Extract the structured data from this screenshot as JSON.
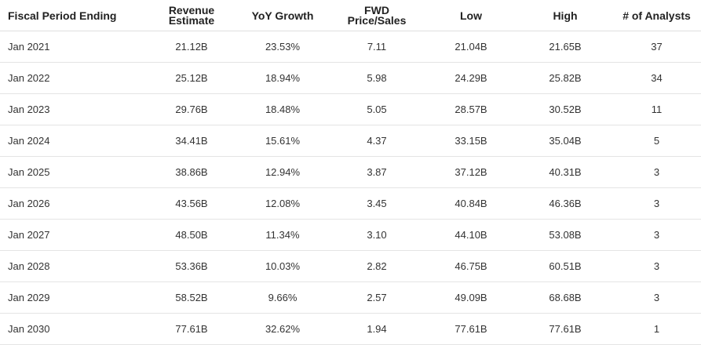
{
  "columns": [
    {
      "line1": "Fiscal Period Ending",
      "line2": ""
    },
    {
      "line1": "Revenue",
      "line2": "Estimate"
    },
    {
      "line1": "YoY Growth",
      "line2": ""
    },
    {
      "line1": "FWD",
      "line2": "Price/Sales"
    },
    {
      "line1": "Low",
      "line2": ""
    },
    {
      "line1": "High",
      "line2": ""
    },
    {
      "line1": "# of Analysts",
      "line2": ""
    }
  ],
  "rows": [
    [
      "Jan 2021",
      "21.12B",
      "23.53%",
      "7.11",
      "21.04B",
      "21.65B",
      "37"
    ],
    [
      "Jan 2022",
      "25.12B",
      "18.94%",
      "5.98",
      "24.29B",
      "25.82B",
      "34"
    ],
    [
      "Jan 2023",
      "29.76B",
      "18.48%",
      "5.05",
      "28.57B",
      "30.52B",
      "11"
    ],
    [
      "Jan 2024",
      "34.41B",
      "15.61%",
      "4.37",
      "33.15B",
      "35.04B",
      "5"
    ],
    [
      "Jan 2025",
      "38.86B",
      "12.94%",
      "3.87",
      "37.12B",
      "40.31B",
      "3"
    ],
    [
      "Jan 2026",
      "43.56B",
      "12.08%",
      "3.45",
      "40.84B",
      "46.36B",
      "3"
    ],
    [
      "Jan 2027",
      "48.50B",
      "11.34%",
      "3.10",
      "44.10B",
      "53.08B",
      "3"
    ],
    [
      "Jan 2028",
      "53.36B",
      "10.03%",
      "2.82",
      "46.75B",
      "60.51B",
      "3"
    ],
    [
      "Jan 2029",
      "58.52B",
      "9.66%",
      "2.57",
      "49.09B",
      "68.68B",
      "3"
    ],
    [
      "Jan 2030",
      "77.61B",
      "32.62%",
      "1.94",
      "77.61B",
      "77.61B",
      "1"
    ]
  ]
}
